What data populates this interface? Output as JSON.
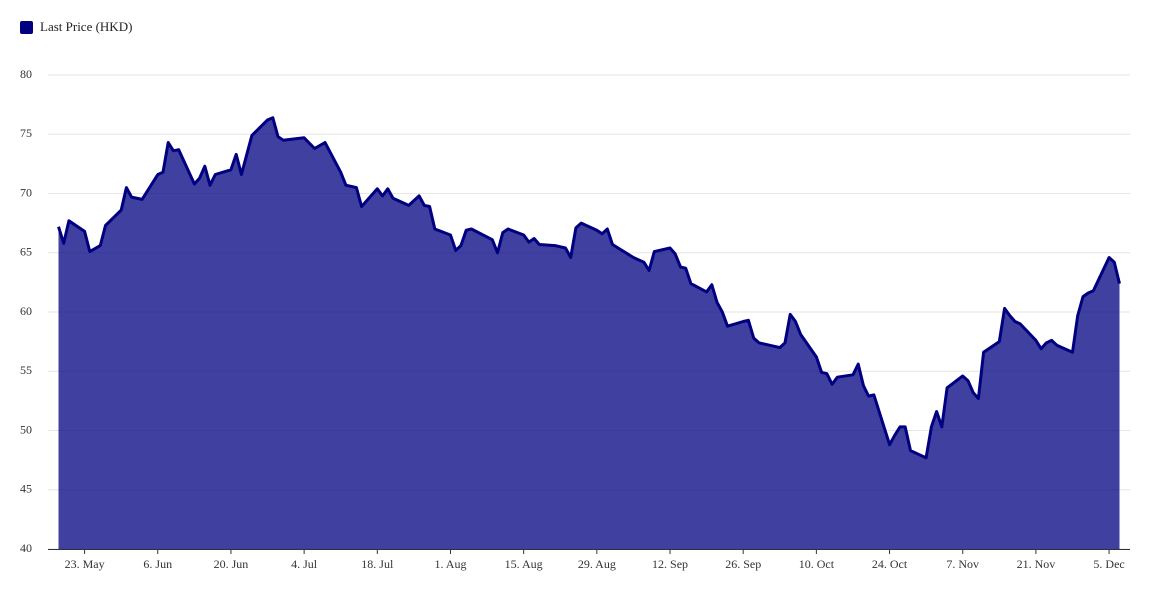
{
  "chart_data": {
    "type": "area",
    "x": [
      "05-18",
      "05-19",
      "05-20",
      "05-23",
      "05-24",
      "05-26",
      "05-27",
      "05-30",
      "05-31",
      "06-01",
      "06-03",
      "06-06",
      "06-07",
      "06-08",
      "06-09",
      "06-10",
      "06-13",
      "06-14",
      "06-15",
      "06-16",
      "06-17",
      "06-20",
      "06-21",
      "06-22",
      "06-24",
      "06-27",
      "06-28",
      "06-29",
      "06-30",
      "07-04",
      "07-06",
      "07-08",
      "07-11",
      "07-12",
      "07-14",
      "07-15",
      "07-18",
      "07-19",
      "07-20",
      "07-21",
      "07-24",
      "07-26",
      "07-27",
      "07-28",
      "07-29",
      "08-01",
      "08-02",
      "08-03",
      "08-04",
      "08-05",
      "08-09",
      "08-10",
      "08-11",
      "08-12",
      "08-15",
      "08-16",
      "08-17",
      "08-18",
      "08-21",
      "08-23",
      "08-24",
      "08-25",
      "08-26",
      "08-29",
      "08-30",
      "08-31",
      "09-01",
      "09-05",
      "09-07",
      "09-08",
      "09-09",
      "09-12",
      "09-13",
      "09-14",
      "09-15",
      "09-16",
      "09-19",
      "09-20",
      "09-21",
      "09-22",
      "09-23",
      "09-26",
      "09-27",
      "09-28",
      "09-29",
      "10-03",
      "10-04",
      "10-05",
      "10-06",
      "10-07",
      "10-10",
      "10-11",
      "10-12",
      "10-13",
      "10-14",
      "10-17",
      "10-18",
      "10-19",
      "10-20",
      "10-21",
      "10-24",
      "10-25",
      "10-26",
      "10-27",
      "10-28",
      "10-31",
      "11-01",
      "11-02",
      "11-03",
      "11-04",
      "11-07",
      "11-08",
      "11-09",
      "11-10",
      "11-11",
      "11-14",
      "11-15",
      "11-16",
      "11-17",
      "11-18",
      "11-21",
      "11-22",
      "11-23",
      "11-24",
      "11-25",
      "11-28",
      "11-29",
      "11-30",
      "12-01",
      "12-02",
      "12-05",
      "12-06",
      "12-07"
    ],
    "series": [
      {
        "name": "Last Price (HKD)",
        "color": "#000080",
        "values": [
          67.2,
          65.8,
          67.7,
          66.8,
          65.1,
          65.6,
          67.3,
          68.6,
          70.5,
          69.7,
          69.5,
          71.6,
          71.8,
          74.3,
          73.6,
          73.7,
          70.8,
          71.3,
          72.3,
          70.7,
          71.6,
          72.0,
          73.3,
          71.6,
          74.9,
          76.2,
          76.4,
          74.8,
          74.5,
          74.7,
          73.8,
          74.3,
          71.8,
          70.7,
          70.5,
          68.9,
          70.4,
          69.8,
          70.4,
          69.6,
          69.0,
          69.8,
          69.0,
          68.9,
          67.0,
          66.5,
          65.2,
          65.6,
          66.9,
          67.0,
          66.1,
          65.0,
          66.7,
          67.0,
          66.5,
          65.9,
          66.2,
          65.7,
          65.6,
          65.4,
          64.6,
          67.1,
          67.5,
          66.9,
          66.6,
          67.0,
          65.7,
          64.6,
          64.2,
          63.5,
          65.1,
          65.4,
          64.9,
          63.8,
          63.7,
          62.4,
          61.7,
          62.3,
          60.8,
          60.0,
          58.8,
          59.2,
          59.3,
          57.8,
          57.4,
          57.0,
          57.4,
          59.8,
          59.2,
          58.1,
          56.2,
          54.9,
          54.8,
          53.9,
          54.5,
          54.7,
          55.6,
          53.8,
          52.9,
          53.0,
          48.8,
          49.6,
          50.3,
          50.3,
          48.3,
          47.7,
          50.3,
          51.6,
          50.3,
          53.6,
          54.6,
          54.2,
          53.2,
          52.7,
          56.6,
          57.5,
          60.3,
          59.7,
          59.2,
          59.0,
          57.6,
          56.9,
          57.4,
          57.6,
          57.2,
          56.6,
          59.7,
          61.3,
          61.6,
          61.8,
          64.6,
          64.2,
          62.4
        ]
      }
    ],
    "xlim": [
      "05-16",
      "12-09"
    ],
    "xticks": [
      {
        "value": "05-23",
        "label": "23. May"
      },
      {
        "value": "06-06",
        "label": "6. Jun"
      },
      {
        "value": "06-20",
        "label": "20. Jun"
      },
      {
        "value": "07-04",
        "label": "4. Jul"
      },
      {
        "value": "07-18",
        "label": "18. Jul"
      },
      {
        "value": "08-01",
        "label": "1. Aug"
      },
      {
        "value": "08-15",
        "label": "15. Aug"
      },
      {
        "value": "08-29",
        "label": "29. Aug"
      },
      {
        "value": "09-12",
        "label": "12. Sep"
      },
      {
        "value": "09-26",
        "label": "26. Sep"
      },
      {
        "value": "10-10",
        "label": "10. Oct"
      },
      {
        "value": "10-24",
        "label": "24. Oct"
      },
      {
        "value": "11-07",
        "label": "7. Nov"
      },
      {
        "value": "11-21",
        "label": "21. Nov"
      },
      {
        "value": "12-05",
        "label": "5. Dec"
      }
    ],
    "ylim": [
      40,
      80
    ],
    "yticks": [
      40,
      45,
      50,
      55,
      60,
      65,
      70,
      75,
      80
    ],
    "grid": true,
    "legend": "top-left"
  }
}
